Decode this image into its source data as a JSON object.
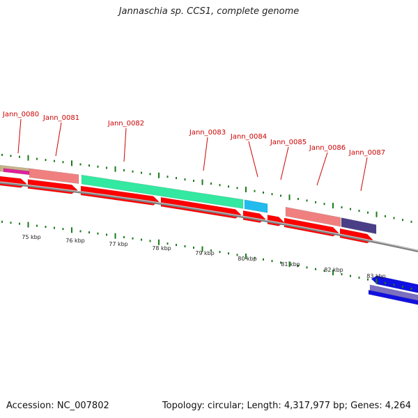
{
  "title": "Jannaschia sp. CCS1, complete genome",
  "footer": {
    "accession": "Accession: NC_007802",
    "stats": "Topology: circular; Length: 4,317,977 bp; Genes: 4,264"
  },
  "colors": {
    "backbone": "#808080",
    "tick": "#1a7a1a",
    "label": "#cc0000",
    "cds": "#ff0000",
    "salmon": "#f08080",
    "green": "#33e8a0",
    "cyan": "#22bbee",
    "purple": "#4a3f86",
    "blue": "#1010e0",
    "tan": "#c8b48a",
    "magenta": "#e0209a"
  },
  "gene_labels": [
    {
      "text": "Jann_0080"
    },
    {
      "text": "Jann_0081"
    },
    {
      "text": "Jann_0082"
    },
    {
      "text": "Jann_0083"
    },
    {
      "text": "Jann_0084"
    },
    {
      "text": "Jann_0085"
    },
    {
      "text": "Jann_0086"
    },
    {
      "text": "Jann_0087"
    }
  ],
  "scale_ticks": [
    "75 kbp",
    "76 kbp",
    "77 kbp",
    "78 kbp",
    "79 kbp",
    "80 kbp",
    "81 kbp",
    "82 kbp",
    "83 kbp"
  ]
}
